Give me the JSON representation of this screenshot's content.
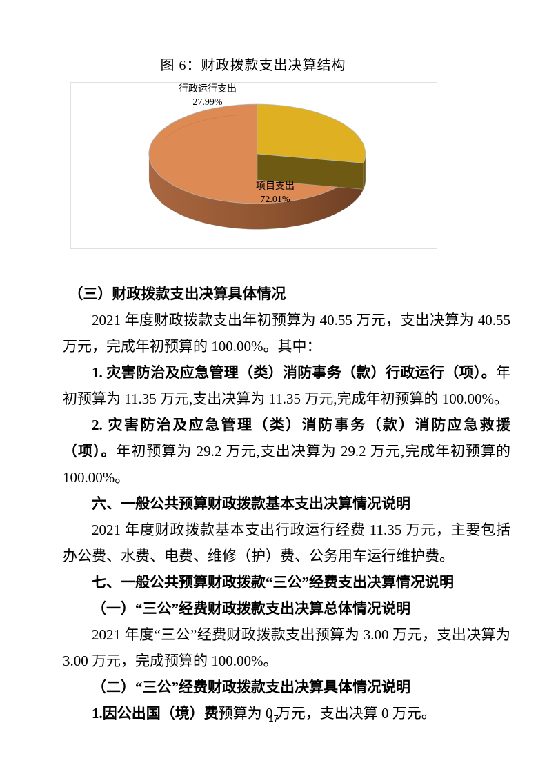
{
  "page": {
    "number": "17"
  },
  "chart_data": {
    "type": "pie",
    "style": "3d",
    "title": "图 6：财政拨款支出决算结构",
    "start_angle": "12-oclock",
    "direction": "clockwise",
    "legend": "none",
    "unit": "%",
    "slices": [
      {
        "label": "行政运行支出",
        "value": 27.99,
        "display": "27.99%",
        "color": "#DFB021",
        "side_color": "#6F5A13"
      },
      {
        "label": "项目支出",
        "value": 72.01,
        "display": "72.01%",
        "color": "#DE8A54",
        "side_color": "#8F5530"
      }
    ]
  },
  "document": {
    "paragraphs": [
      {
        "indent": "small",
        "runs": [
          {
            "bold": true,
            "text": "（三）财政拨款支出决算具体情况"
          }
        ]
      },
      {
        "indent": "normal",
        "runs": [
          {
            "bold": false,
            "text": "2021 年度财政拨款支出年初预算为 40.55 万元，支出决算为 40.55 万元，完成年初预算的 100.00%。其中："
          }
        ]
      },
      {
        "indent": "normal",
        "runs": [
          {
            "bold": true,
            "text": "1. 灾害防治及应急管理（类）消防事务（款）行政运行（项）。"
          },
          {
            "bold": false,
            "text": "年初预算为 11.35 万元,支出决算为 11.35 万元,完成年初预算的 100.00%。"
          }
        ]
      },
      {
        "indent": "normal",
        "runs": [
          {
            "bold": true,
            "text": "2. 灾害防治及应急管理（类）消防事务（款）消防应急救援（项）。"
          },
          {
            "bold": false,
            "text": "年初预算为 29.2 万元,支出决算为 29.2 万元,完成年初预算的 100.00%。"
          }
        ]
      },
      {
        "indent": "normal",
        "runs": [
          {
            "bold": true,
            "text": "六、一般公共预算财政拨款基本支出决算情况说明"
          }
        ]
      },
      {
        "indent": "normal",
        "runs": [
          {
            "bold": false,
            "text": "2021 年度财政拨款基本支出行政运行经费 11.35 万元，主要包括办公费、水费、电费、维修（护）费、公务用车运行维护费。"
          }
        ]
      },
      {
        "indent": "normal",
        "runs": [
          {
            "bold": true,
            "text": "七、一般公共预算财政拨款“三公”经费支出决算情况说明"
          }
        ]
      },
      {
        "indent": "normal",
        "runs": [
          {
            "bold": true,
            "text": "（一）“三公”经费财政拨款支出决算总体情况说明"
          }
        ]
      },
      {
        "indent": "normal",
        "runs": [
          {
            "bold": false,
            "text": "2021 年度“三公”经费财政拨款支出预算为 3.00 万元，支出决算为 3.00 万元，完成预算的 100.00%。"
          }
        ]
      },
      {
        "indent": "normal",
        "runs": [
          {
            "bold": true,
            "text": "（二）“三公”经费财政拨款支出决算具体情况说明"
          }
        ]
      },
      {
        "indent": "normal",
        "runs": [
          {
            "bold": true,
            "text": "1.因公出国（境）费"
          },
          {
            "bold": false,
            "text": "预算为 0 万元，支出决算 0 万元。"
          }
        ]
      }
    ]
  }
}
